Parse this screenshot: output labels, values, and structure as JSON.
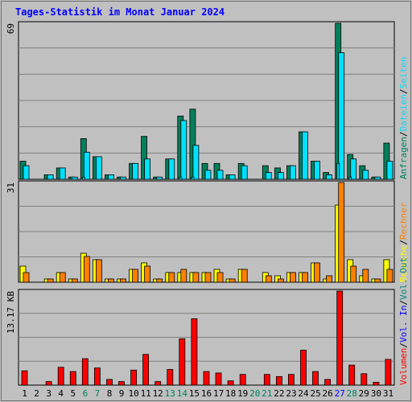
{
  "chart_data": {
    "type": "bar",
    "title": "Tages-Statistik im Monat Januar 2024",
    "colors": {
      "title": "#0000ff",
      "anfragen": "#00805c",
      "dateien": "#00e0ff",
      "seiten": "#00e0ff",
      "besuche": "#ffff00",
      "rechner": "#ff8000",
      "vol_out": "#008080",
      "vol_in": "#0000ff",
      "volumen": "#ff0000",
      "plot_bg": "#c0c0c0",
      "grid": "#808080",
      "weekday_label": "#000000",
      "weekend_label": "#00805c",
      "today_label": "#0000ff"
    },
    "categories": [
      "1",
      "2",
      "3",
      "4",
      "5",
      "6",
      "7",
      "8",
      "9",
      "10",
      "11",
      "12",
      "13",
      "14",
      "15",
      "16",
      "17",
      "18",
      "19",
      "20",
      "21",
      "22",
      "23",
      "24",
      "25",
      "26",
      "27",
      "28",
      "29",
      "30",
      "31"
    ],
    "day_label_colors": [
      "weekday",
      "weekday",
      "weekday",
      "weekday",
      "weekday",
      "weekend",
      "weekend",
      "weekday",
      "weekday",
      "weekday",
      "weekday",
      "weekday",
      "weekend",
      "weekend",
      "weekday",
      "weekday",
      "weekday",
      "weekday",
      "weekday",
      "weekend",
      "weekend",
      "weekday",
      "weekday",
      "weekday",
      "weekday",
      "weekday",
      "today",
      "weekend",
      "weekday",
      "weekday",
      "weekday"
    ],
    "panels": [
      {
        "name": "hits",
        "max_label": "69",
        "ymax": 69,
        "legend": [
          {
            "text": "Anfragen",
            "color": "#00805c"
          },
          {
            "text": "/",
            "color": "#000000"
          },
          {
            "text": "Dateien",
            "color": "#00e0ff"
          },
          {
            "text": "/",
            "color": "#000000"
          },
          {
            "text": "Seiten",
            "color": "#00e0ff"
          }
        ],
        "series": [
          {
            "name": "Anfragen",
            "color": "#00805c",
            "values": [
              8,
              0,
              2,
              5,
              1,
              18,
              10,
              2,
              1,
              7,
              19,
              1,
              9,
              28,
              31,
              7,
              7,
              2,
              7,
              0,
              6,
              5,
              6,
              21,
              8,
              3,
              69,
              11,
              6,
              1,
              16
            ]
          },
          {
            "name": "Dateien",
            "color": "#00e0ff",
            "values": [
              6,
              0,
              2,
              5,
              1,
              12,
              10,
              2,
              1,
              7,
              9,
              1,
              9,
              26,
              15,
              4,
              4,
              2,
              6,
              0,
              3,
              3,
              6,
              21,
              8,
              2,
              56,
              9,
              4,
              1,
              8
            ]
          },
          {
            "name": "Seiten",
            "color": "#00e0ff",
            "values": [
              0,
              0,
              0,
              0,
              0,
              1,
              0,
              0,
              0,
              0,
              0,
              0,
              0,
              1,
              1,
              0,
              0,
              0,
              0,
              0,
              0,
              0,
              0,
              0,
              0,
              0,
              7,
              1,
              0,
              0,
              0
            ]
          }
        ]
      },
      {
        "name": "visits",
        "max_label": "31",
        "ymax": 31,
        "legend": [
          {
            "text": "Besuche",
            "color": "#ffff00"
          },
          {
            "text": "/",
            "color": "#000000"
          },
          {
            "text": "Rechner",
            "color": "#ff8000"
          }
        ],
        "series": [
          {
            "name": "Besuche",
            "color": "#ffff00",
            "values": [
              5,
              0,
              1,
              3,
              1,
              9,
              7,
              1,
              1,
              4,
              6,
              1,
              3,
              3,
              3,
              3,
              4,
              1,
              4,
              0,
              3,
              2,
              3,
              3,
              6,
              1,
              24,
              7,
              2,
              1,
              7
            ]
          },
          {
            "name": "Rechner",
            "color": "#ff8000",
            "values": [
              3,
              0,
              1,
              3,
              1,
              8,
              7,
              1,
              1,
              4,
              5,
              1,
              3,
              4,
              3,
              3,
              3,
              1,
              4,
              0,
              2,
              1,
              3,
              3,
              6,
              2,
              31,
              5,
              4,
              1,
              4
            ]
          }
        ]
      },
      {
        "name": "volume",
        "max_label": "13.17 KB",
        "ymax": 13.17,
        "legend": [
          {
            "text": "Volumen",
            "color": "#ff0000"
          },
          {
            "text": "/",
            "color": "#000000"
          },
          {
            "text": "Vol. In",
            "color": "#0000ff"
          },
          {
            "text": "/",
            "color": "#000000"
          },
          {
            "text": "Vol. Out",
            "color": "#008080"
          }
        ],
        "series": [
          {
            "name": "Volumen",
            "color": "#ff0000",
            "values": [
              2.0,
              0,
              0.5,
              2.5,
              1.9,
              3.7,
              2.4,
              0.8,
              0.5,
              2.1,
              4.3,
              0.5,
              2.2,
              6.5,
              9.3,
              1.9,
              1.7,
              0.6,
              1.5,
              0,
              1.5,
              1.2,
              1.5,
              4.9,
              1.9,
              0.8,
              13.17,
              2.8,
              1.6,
              0.4,
              3.6
            ]
          }
        ]
      }
    ]
  }
}
